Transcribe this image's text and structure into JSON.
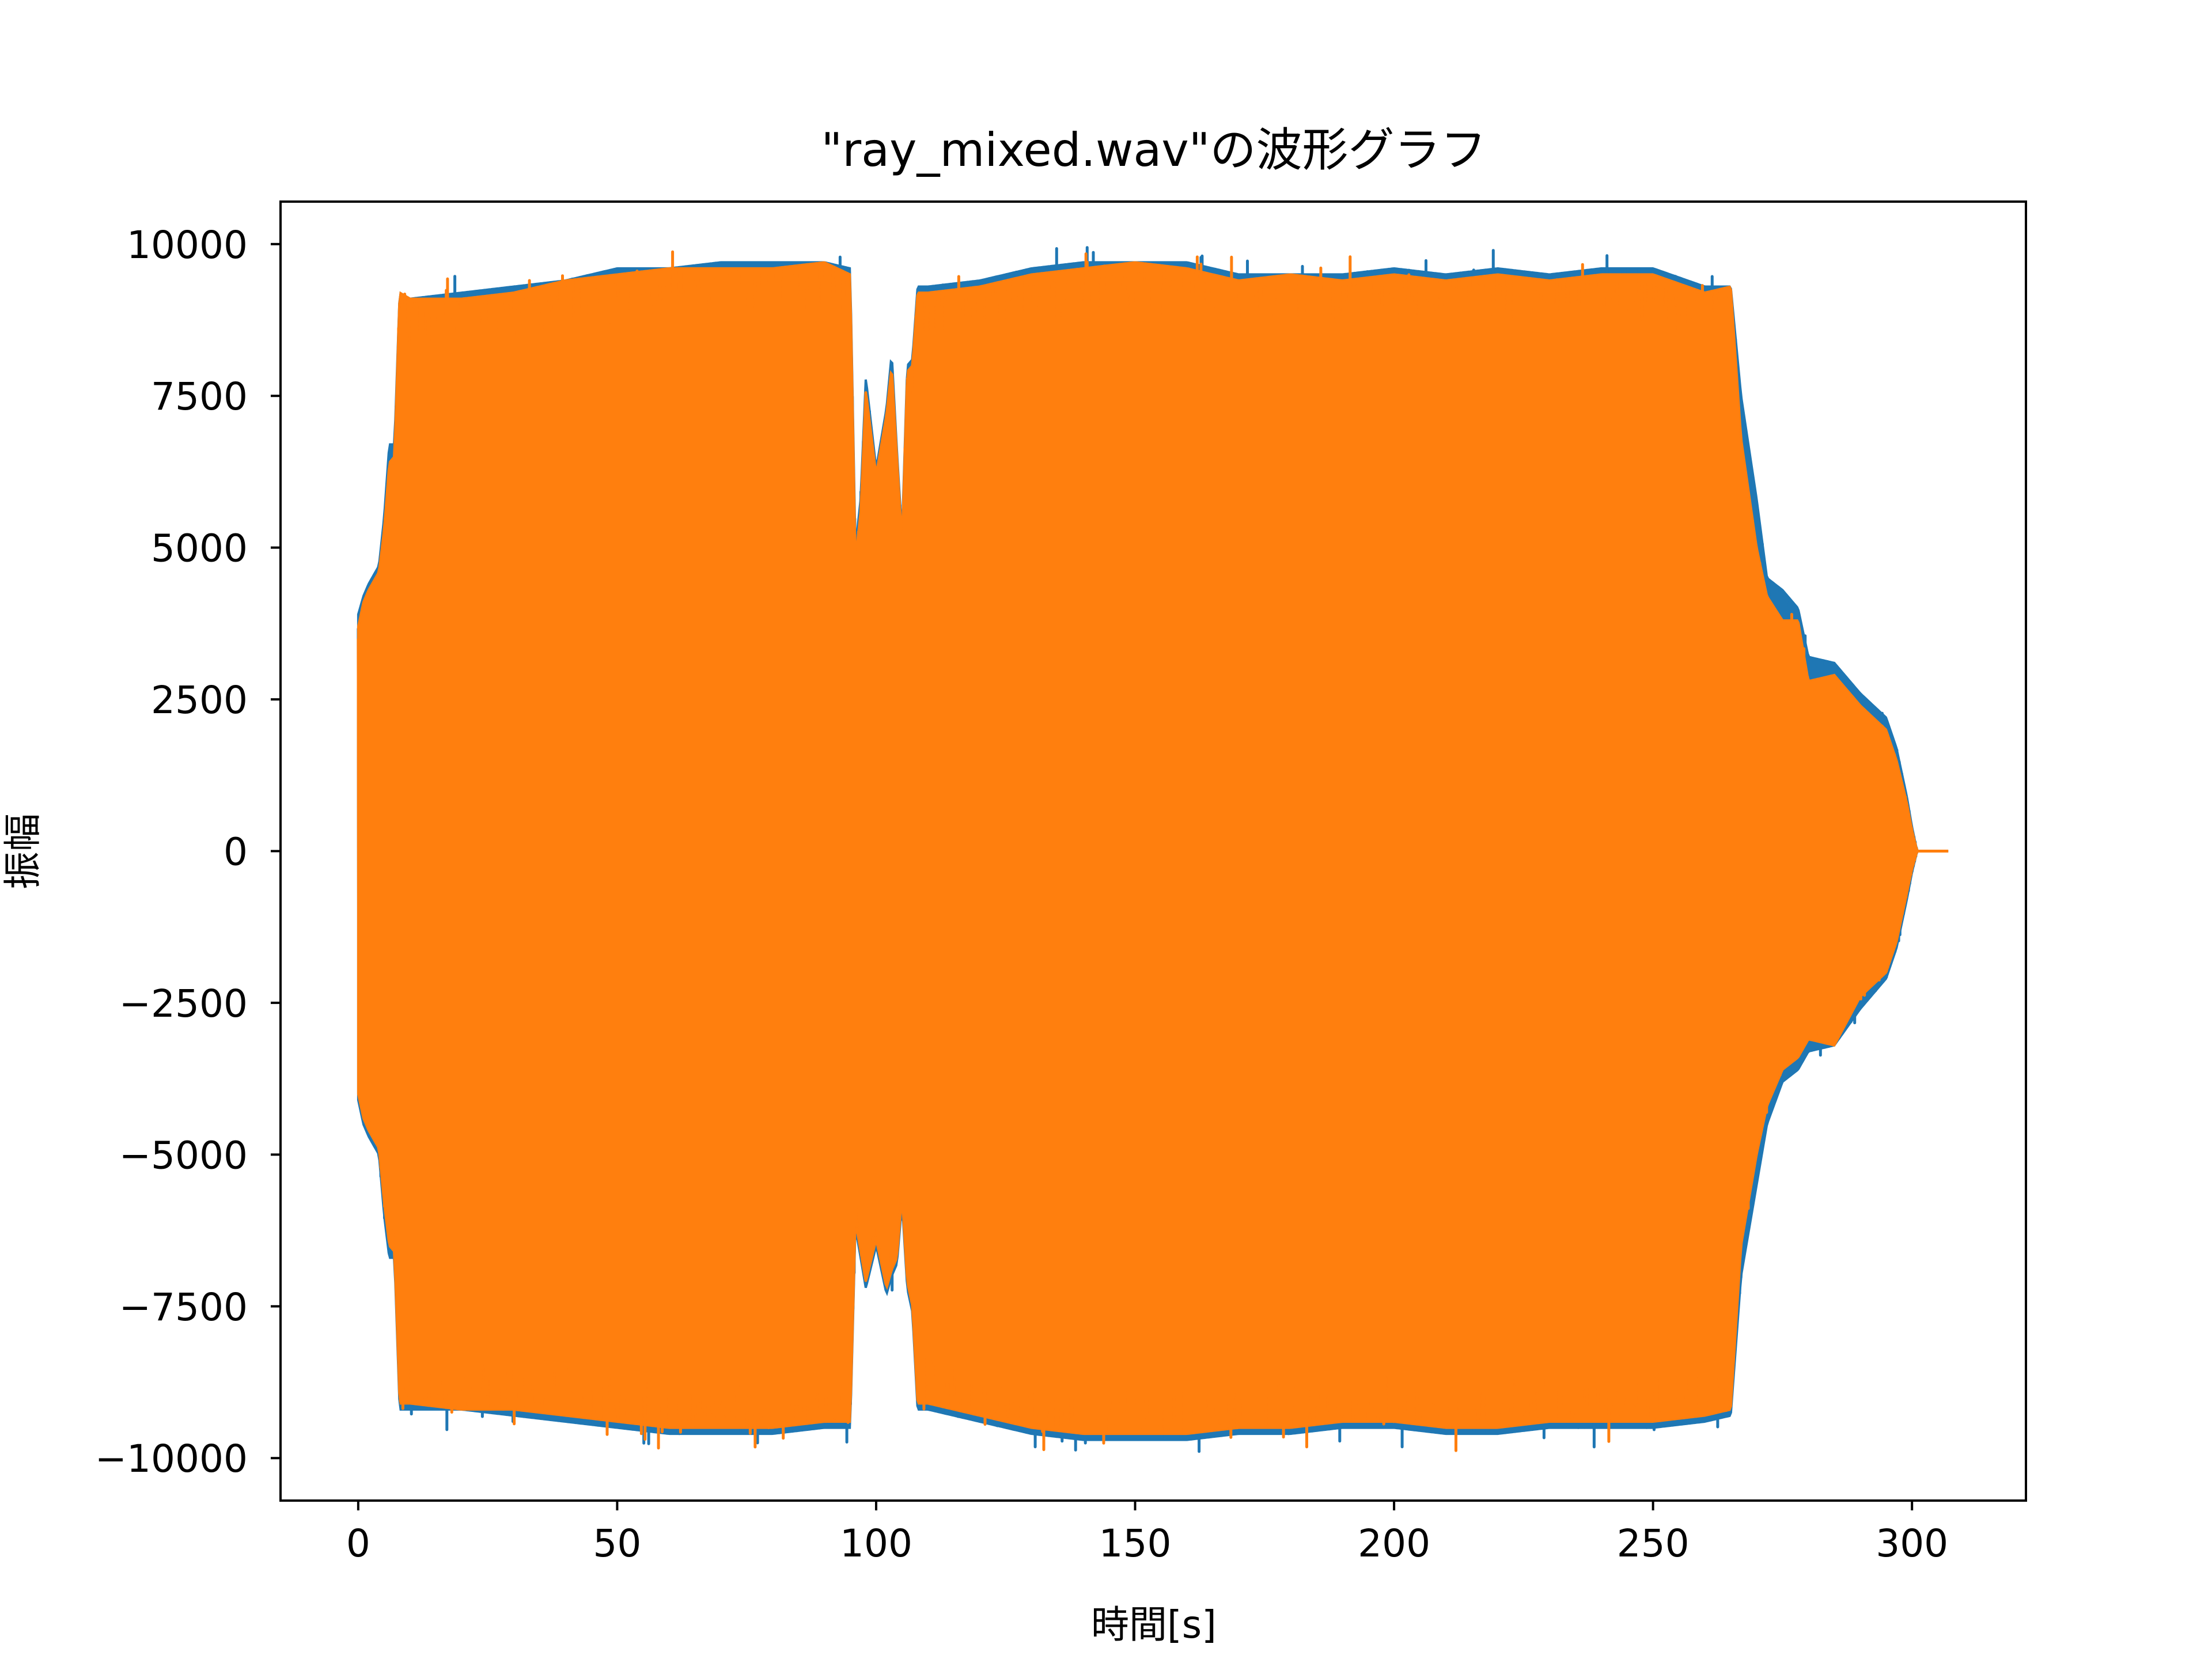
{
  "chart_data": {
    "type": "line",
    "title": "\"ray_mixed.wav\"の波形グラフ",
    "xlabel": "時間[s]",
    "ylabel": "振幅",
    "xlim": [
      -15,
      322
    ],
    "ylim": [
      -10700,
      10700
    ],
    "grid": false,
    "legend": "none",
    "x_ticks": [
      {
        "value": 0,
        "label": "0"
      },
      {
        "value": 50,
        "label": "50"
      },
      {
        "value": 100,
        "label": "100"
      },
      {
        "value": 150,
        "label": "150"
      },
      {
        "value": 200,
        "label": "200"
      },
      {
        "value": 250,
        "label": "250"
      },
      {
        "value": 300,
        "label": "300"
      }
    ],
    "y_ticks": [
      {
        "value": 10000,
        "label": "10000"
      },
      {
        "value": 7500,
        "label": "7500"
      },
      {
        "value": 5000,
        "label": "5000"
      },
      {
        "value": 2500,
        "label": "2500"
      },
      {
        "value": 0,
        "label": "0"
      },
      {
        "value": -2500,
        "label": "−2500"
      },
      {
        "value": -5000,
        "label": "−5000"
      },
      {
        "value": -7500,
        "label": "−7500"
      },
      {
        "value": -10000,
        "label": "−10000"
      }
    ],
    "series": [
      {
        "color": "#1f77b4",
        "envelope": {
          "t": [
            0,
            1,
            2,
            4,
            5,
            6,
            7,
            8,
            10,
            20,
            30,
            40,
            50,
            60,
            70,
            80,
            90,
            95,
            96,
            97,
            98,
            100,
            102,
            103,
            104,
            105,
            106,
            107,
            108,
            110,
            120,
            130,
            140,
            150,
            160,
            170,
            180,
            190,
            200,
            210,
            220,
            230,
            240,
            250,
            260,
            265,
            267,
            270,
            272,
            275,
            278,
            280,
            285,
            290,
            295,
            297,
            299,
            300,
            301,
            307
          ],
          "upper": [
            3900,
            4200,
            4400,
            4700,
            5500,
            6700,
            6700,
            9200,
            9100,
            9200,
            9300,
            9400,
            9600,
            9600,
            9700,
            9700,
            9700,
            9600,
            5000,
            5800,
            7800,
            6300,
            7300,
            8200,
            6600,
            5200,
            8000,
            8100,
            9300,
            9300,
            9400,
            9600,
            9700,
            9700,
            9700,
            9500,
            9500,
            9500,
            9600,
            9500,
            9600,
            9500,
            9600,
            9600,
            9300,
            9300,
            7500,
            5800,
            4500,
            4300,
            4000,
            3200,
            3100,
            2600,
            2200,
            1700,
            900,
            400,
            0,
            0
          ],
          "lower": [
            -4100,
            -4500,
            -4700,
            -5000,
            -6000,
            -6700,
            -6700,
            -9200,
            -9200,
            -9200,
            -9300,
            -9400,
            -9500,
            -9600,
            -9600,
            -9600,
            -9500,
            -9500,
            -6200,
            -6700,
            -7200,
            -6500,
            -7300,
            -7000,
            -6800,
            -5800,
            -7200,
            -7600,
            -9200,
            -9200,
            -9400,
            -9600,
            -9700,
            -9700,
            -9700,
            -9600,
            -9600,
            -9500,
            -9500,
            -9600,
            -9600,
            -9500,
            -9500,
            -9500,
            -9400,
            -9300,
            -7000,
            -5500,
            -4500,
            -3800,
            -3600,
            -3300,
            -3200,
            -2600,
            -2100,
            -1600,
            -800,
            -350,
            0,
            0
          ]
        }
      },
      {
        "color": "#ff7f0e",
        "envelope": {
          "t": [
            0,
            1,
            2,
            4,
            5,
            6,
            7,
            8,
            10,
            20,
            30,
            40,
            50,
            60,
            70,
            80,
            90,
            95,
            96,
            97,
            98,
            100,
            102,
            103,
            104,
            105,
            106,
            107,
            108,
            110,
            120,
            130,
            140,
            150,
            160,
            170,
            180,
            190,
            200,
            210,
            220,
            230,
            240,
            250,
            260,
            265,
            267,
            270,
            272,
            275,
            278,
            280,
            285,
            290,
            295,
            297,
            299,
            300,
            301,
            307
          ],
          "upper": [
            3700,
            4100,
            4300,
            4600,
            5300,
            6400,
            6500,
            9200,
            9100,
            9100,
            9200,
            9400,
            9500,
            9600,
            9600,
            9600,
            9700,
            9500,
            4800,
            5600,
            7600,
            6200,
            7200,
            8000,
            6500,
            5100,
            7900,
            8000,
            9200,
            9200,
            9300,
            9500,
            9600,
            9700,
            9600,
            9400,
            9500,
            9400,
            9500,
            9400,
            9500,
            9400,
            9500,
            9500,
            9200,
            9300,
            6800,
            5000,
            4200,
            3800,
            3800,
            2800,
            2900,
            2400,
            2000,
            1500,
            800,
            350,
            0,
            0
          ],
          "lower": [
            -4000,
            -4400,
            -4600,
            -4900,
            -5800,
            -6500,
            -6600,
            -9100,
            -9100,
            -9200,
            -9200,
            -9300,
            -9400,
            -9500,
            -9500,
            -9500,
            -9400,
            -9400,
            -6100,
            -6600,
            -7100,
            -6400,
            -7200,
            -6900,
            -6700,
            -5700,
            -7100,
            -7500,
            -9100,
            -9100,
            -9300,
            -9500,
            -9600,
            -9600,
            -9600,
            -9500,
            -9500,
            -9400,
            -9400,
            -9500,
            -9500,
            -9400,
            -9400,
            -9400,
            -9300,
            -9200,
            -6500,
            -5000,
            -4200,
            -3600,
            -3400,
            -3100,
            -3200,
            -2400,
            -2000,
            -1500,
            -700,
            -300,
            0,
            0
          ]
        }
      }
    ]
  }
}
